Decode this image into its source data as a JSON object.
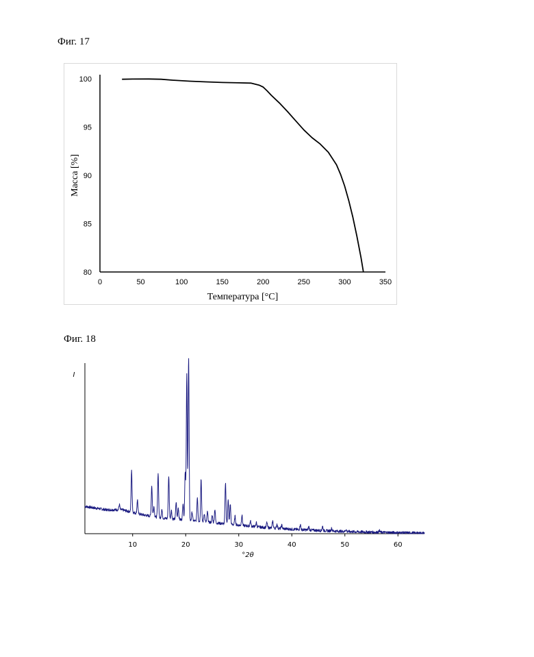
{
  "figures": {
    "fig17_caption": "Фиг. 17",
    "fig18_caption": "Фиг. 18"
  },
  "chart_data": [
    {
      "type": "line",
      "title": "",
      "xlabel": "Температура [°С]",
      "ylabel": "Масса [%]",
      "xlim": [
        0,
        350
      ],
      "ylim": [
        80,
        100
      ],
      "x_ticks": [
        0,
        50,
        100,
        150,
        200,
        250,
        300,
        350
      ],
      "y_ticks": [
        80,
        85,
        90,
        95,
        100
      ],
      "grid": false,
      "line_color": "#000000",
      "series": [
        {
          "x": [
            27,
            40,
            60,
            75,
            90,
            110,
            130,
            150,
            170,
            185,
            195,
            200,
            205,
            210,
            220,
            230,
            240,
            250,
            260,
            270,
            280,
            290,
            295,
            300,
            305,
            310,
            315,
            320,
            323
          ],
          "y": [
            99.95,
            99.97,
            99.98,
            99.95,
            99.85,
            99.75,
            99.68,
            99.62,
            99.58,
            99.55,
            99.35,
            99.15,
            98.75,
            98.3,
            97.5,
            96.6,
            95.65,
            94.7,
            93.9,
            93.25,
            92.4,
            91.1,
            90.1,
            88.9,
            87.4,
            85.7,
            83.7,
            81.5,
            80.0
          ]
        }
      ]
    },
    {
      "type": "line",
      "title": "",
      "xlabel": "°2θ",
      "ylabel": "I",
      "xlim": [
        1,
        65
      ],
      "x_ticks": [
        10,
        20,
        30,
        40,
        50,
        60
      ],
      "ylim": [
        0,
        100
      ],
      "y_ticks": [],
      "grid": false,
      "line_color": "#1a1a80",
      "baseline": [
        [
          1,
          16
        ],
        [
          5,
          14
        ],
        [
          8,
          14
        ],
        [
          12,
          11
        ],
        [
          16,
          9
        ],
        [
          20,
          8
        ],
        [
          25,
          6.5
        ],
        [
          30,
          5
        ],
        [
          35,
          3.6
        ],
        [
          40,
          2.6
        ],
        [
          45,
          1.9
        ],
        [
          50,
          1.3
        ],
        [
          55,
          0.9
        ],
        [
          60,
          0.6
        ],
        [
          65,
          0.3
        ]
      ],
      "peaks": [
        {
          "pos": 7.5,
          "height": 3
        },
        {
          "pos": 9.8,
          "height": 24
        },
        {
          "pos": 10.9,
          "height": 8
        },
        {
          "pos": 13.6,
          "height": 18
        },
        {
          "pos": 14.0,
          "height": 6
        },
        {
          "pos": 14.8,
          "height": 26
        },
        {
          "pos": 15.5,
          "height": 5
        },
        {
          "pos": 16.8,
          "height": 25
        },
        {
          "pos": 17.3,
          "height": 5
        },
        {
          "pos": 18.2,
          "height": 10
        },
        {
          "pos": 18.6,
          "height": 7
        },
        {
          "pos": 19.5,
          "height": 10
        },
        {
          "pos": 19.9,
          "height": 28
        },
        {
          "pos": 20.2,
          "height": 85
        },
        {
          "pos": 20.55,
          "height": 95
        },
        {
          "pos": 21.2,
          "height": 5
        },
        {
          "pos": 22.2,
          "height": 14
        },
        {
          "pos": 22.9,
          "height": 25
        },
        {
          "pos": 23.5,
          "height": 5
        },
        {
          "pos": 24.1,
          "height": 6
        },
        {
          "pos": 25.0,
          "height": 4
        },
        {
          "pos": 25.5,
          "height": 8
        },
        {
          "pos": 27.5,
          "height": 24
        },
        {
          "pos": 28.0,
          "height": 14
        },
        {
          "pos": 28.4,
          "height": 12
        },
        {
          "pos": 29.3,
          "height": 5
        },
        {
          "pos": 30.6,
          "height": 6
        },
        {
          "pos": 32.2,
          "height": 3
        },
        {
          "pos": 33.3,
          "height": 2.5
        },
        {
          "pos": 35.3,
          "height": 3
        },
        {
          "pos": 36.4,
          "height": 4
        },
        {
          "pos": 37.2,
          "height": 2.5
        },
        {
          "pos": 38.1,
          "height": 2
        },
        {
          "pos": 41.6,
          "height": 3
        },
        {
          "pos": 43.2,
          "height": 2
        },
        {
          "pos": 45.8,
          "height": 2.5
        },
        {
          "pos": 47.5,
          "height": 1.5
        },
        {
          "pos": 50.2,
          "height": 1.2
        },
        {
          "pos": 56.5,
          "height": 1
        }
      ]
    }
  ]
}
